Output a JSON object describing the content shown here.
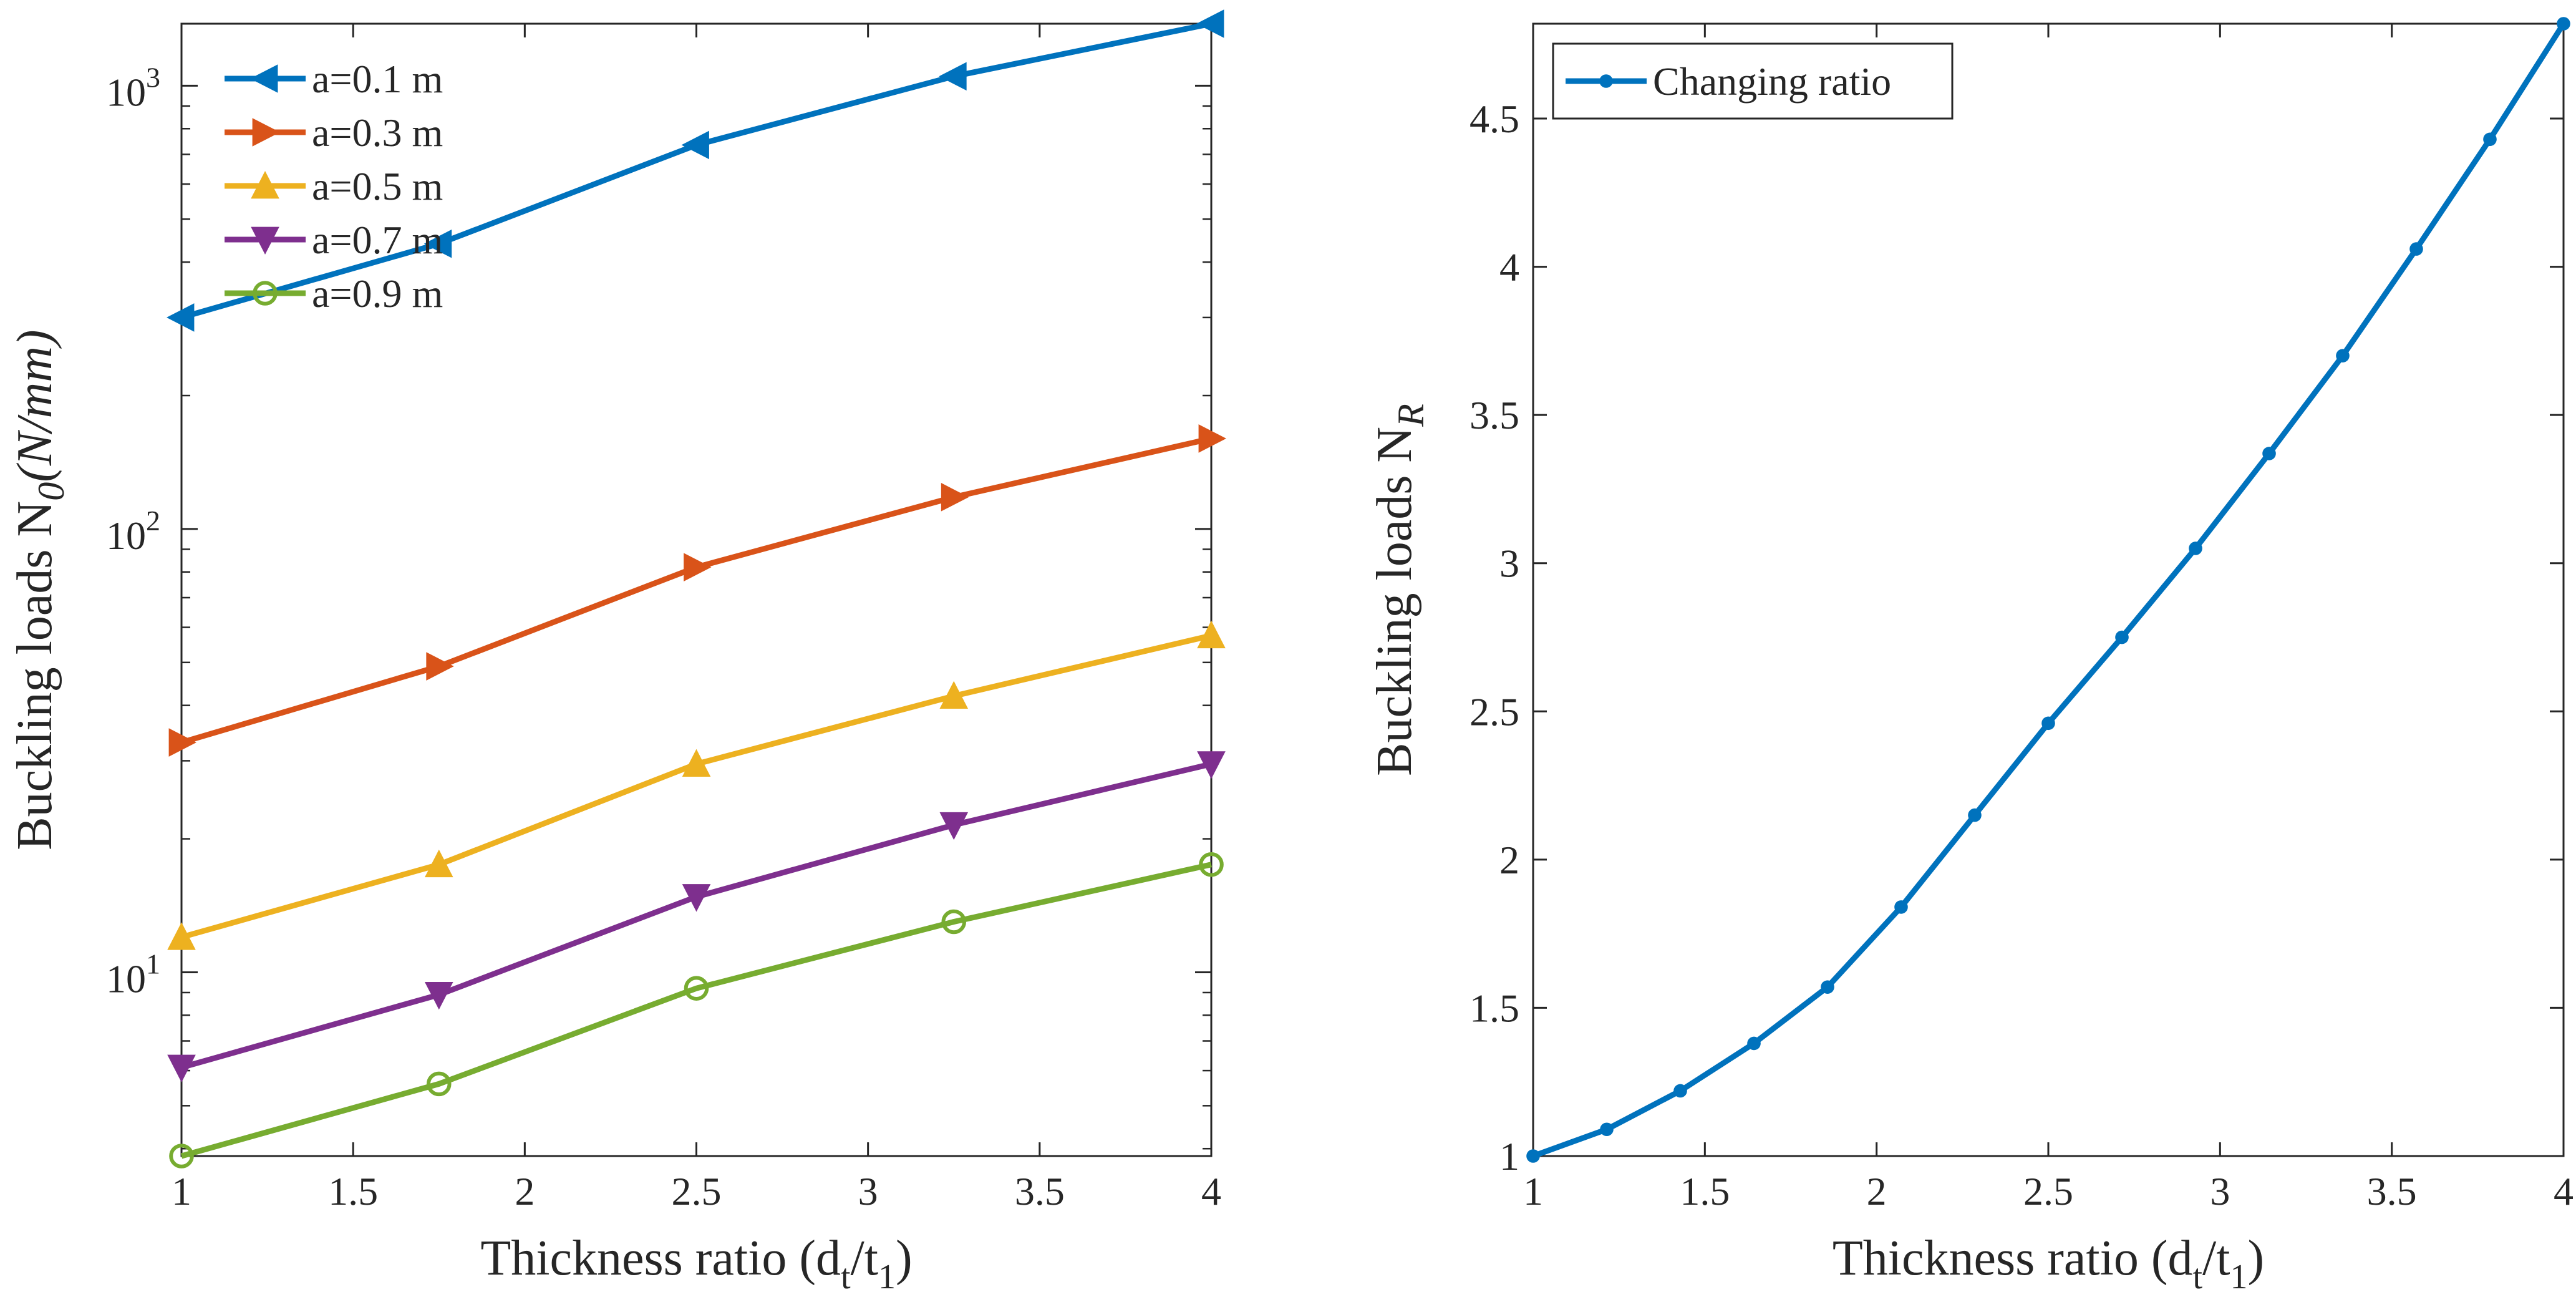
{
  "chart_data": [
    {
      "type": "line",
      "xlabel": "Thickness ratio (d",
      "xlabel_sub1": "t",
      "xlabel_mid": "/t",
      "xlabel_sub2": "1",
      "xlabel_end": ")",
      "ylabel": "Buckling loads N",
      "ylabel_sub": "0",
      "ylabel_unit": "(N/mm)",
      "yscale": "log",
      "xlim": [
        1,
        4
      ],
      "ylim": [
        3.85,
        1380
      ],
      "x_ticks": [
        "1",
        "1.5",
        "2",
        "2.5",
        "3",
        "3.5",
        "4"
      ],
      "x_tick_values": [
        1,
        1.5,
        2,
        2.5,
        3,
        3.5,
        4
      ],
      "y_ticks": [
        {
          "value": 10,
          "base": "10",
          "exp": "1"
        },
        {
          "value": 100,
          "base": "10",
          "exp": "2"
        },
        {
          "value": 1000,
          "base": "10",
          "exp": "3"
        }
      ],
      "legend_position": "top-left",
      "x": [
        1,
        1.75,
        2.5,
        3.25,
        4
      ],
      "series": [
        {
          "name": "a=0.1 m",
          "color": "#0072BD",
          "marker": "triangle-left",
          "values": [
            300,
            440,
            735,
            1050,
            1380
          ]
        },
        {
          "name": "a=0.3 m",
          "color": "#D95319",
          "marker": "triangle-right",
          "values": [
            33,
            49,
            82,
            118,
            160
          ]
        },
        {
          "name": "a=0.5 m",
          "color": "#EDB120",
          "marker": "triangle-up",
          "values": [
            12,
            17.5,
            29.5,
            42,
            57.5
          ]
        },
        {
          "name": "a=0.7 m",
          "color": "#7E2F8E",
          "marker": "triangle-down",
          "values": [
            6.1,
            8.9,
            14.8,
            21.5,
            29.5
          ]
        },
        {
          "name": "a=0.9 m",
          "color": "#77AC30",
          "marker": "circle-open",
          "values": [
            3.85,
            5.6,
            9.2,
            13,
            17.5
          ]
        }
      ]
    },
    {
      "type": "line",
      "xlabel": "Thickness ratio (d",
      "xlabel_sub1": "t",
      "xlabel_mid": "/t",
      "xlabel_sub2": "1",
      "xlabel_end": ")",
      "ylabel": "Buckling loads N",
      "ylabel_sub": "R",
      "xlim": [
        1,
        4
      ],
      "ylim": [
        1,
        4.82
      ],
      "x_ticks": [
        "1",
        "1.5",
        "2",
        "2.5",
        "3",
        "3.5",
        "4"
      ],
      "x_tick_values": [
        1,
        1.5,
        2,
        2.5,
        3,
        3.5,
        4
      ],
      "y_ticks": [
        "1",
        "1.5",
        "2",
        "2.5",
        "3",
        "3.5",
        "4",
        "4.5"
      ],
      "y_tick_values": [
        1,
        1.5,
        2,
        2.5,
        3,
        3.5,
        4,
        4.5
      ],
      "legend_position": "top-left",
      "x": [
        1,
        1.2143,
        1.4286,
        1.6429,
        1.8571,
        2.0714,
        2.2857,
        2.5,
        2.7143,
        2.9286,
        3.1429,
        3.3571,
        3.5714,
        3.7857,
        4
      ],
      "series": [
        {
          "name": "Changing ratio",
          "color": "#0072BD",
          "marker": "circle-filled",
          "values": [
            1.0,
            1.09,
            1.22,
            1.38,
            1.57,
            1.84,
            2.15,
            2.46,
            2.75,
            3.05,
            3.37,
            3.7,
            4.06,
            4.43,
            4.82
          ]
        }
      ]
    }
  ]
}
